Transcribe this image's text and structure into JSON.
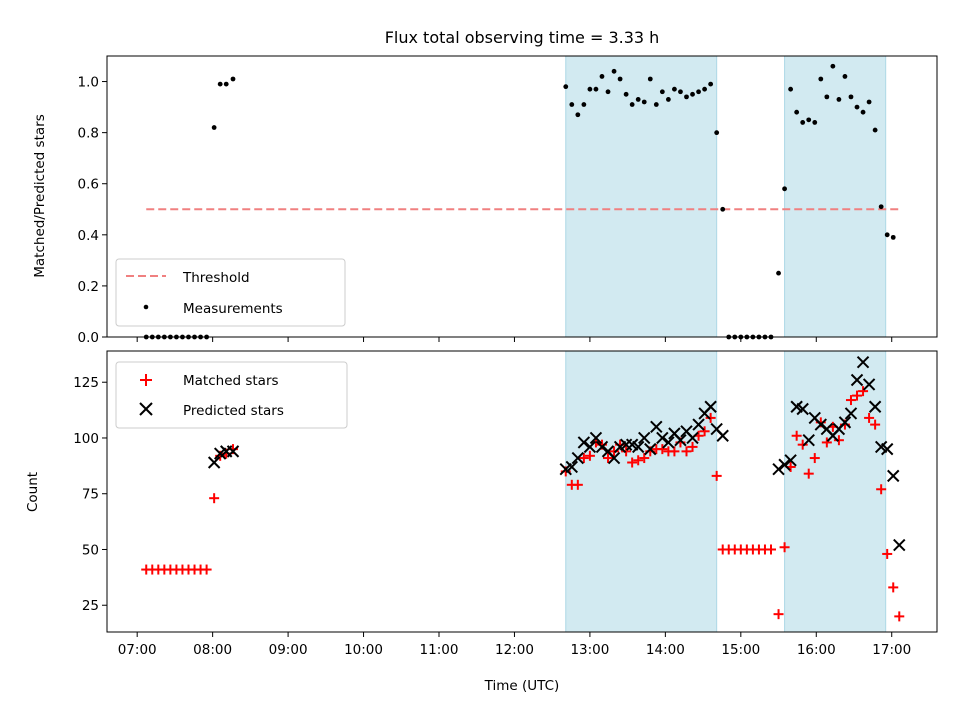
{
  "title": "Flux total observing time = 3.33 h",
  "xlabel": "Time (UTC)",
  "colors": {
    "band": "#add8e6",
    "threshold": "#f08080",
    "measurement": "#000000",
    "matched": "#ff0000",
    "predicted": "#000000"
  },
  "chart_data": [
    {
      "type": "scatter",
      "panel": "top",
      "ylabel": "Matched/Predicted stars",
      "xlim_hours": [
        6.6,
        17.6
      ],
      "ylim": [
        0,
        1.1
      ],
      "yticks": [
        0.0,
        0.2,
        0.4,
        0.6,
        0.8,
        1.0
      ],
      "ytick_labels": [
        "0.0",
        "0.2",
        "0.4",
        "0.6",
        "0.8",
        "1.0"
      ],
      "grid": false,
      "legend_position": "lower-left",
      "shaded_intervals_hours": [
        [
          12.68,
          14.68
        ],
        [
          15.58,
          16.92
        ]
      ],
      "threshold": {
        "label": "Threshold",
        "value": 0.5,
        "x_start": 7.12,
        "x_end": 17.12
      },
      "series": [
        {
          "name": "Measurements",
          "marker": "dot",
          "points": [
            [
              7.12,
              0
            ],
            [
              7.2,
              0
            ],
            [
              7.28,
              0
            ],
            [
              7.36,
              0
            ],
            [
              7.44,
              0
            ],
            [
              7.52,
              0
            ],
            [
              7.6,
              0
            ],
            [
              7.68,
              0
            ],
            [
              7.76,
              0
            ],
            [
              7.84,
              0
            ],
            [
              7.92,
              0
            ],
            [
              8.02,
              0.82
            ],
            [
              8.1,
              0.99
            ],
            [
              8.18,
              0.99
            ],
            [
              8.27,
              1.01
            ],
            [
              12.68,
              0.98
            ],
            [
              12.76,
              0.91
            ],
            [
              12.84,
              0.87
            ],
            [
              12.92,
              0.91
            ],
            [
              13.0,
              0.97
            ],
            [
              13.08,
              0.97
            ],
            [
              13.16,
              1.02
            ],
            [
              13.24,
              0.96
            ],
            [
              13.32,
              1.04
            ],
            [
              13.4,
              1.01
            ],
            [
              13.48,
              0.95
            ],
            [
              13.56,
              0.91
            ],
            [
              13.64,
              0.93
            ],
            [
              13.72,
              0.92
            ],
            [
              13.8,
              1.01
            ],
            [
              13.88,
              0.91
            ],
            [
              13.96,
              0.96
            ],
            [
              14.04,
              0.93
            ],
            [
              14.12,
              0.97
            ],
            [
              14.2,
              0.96
            ],
            [
              14.28,
              0.94
            ],
            [
              14.36,
              0.95
            ],
            [
              14.44,
              0.96
            ],
            [
              14.52,
              0.97
            ],
            [
              14.6,
              0.99
            ],
            [
              14.68,
              0.8
            ],
            [
              14.76,
              0.5
            ],
            [
              14.84,
              0
            ],
            [
              14.92,
              0
            ],
            [
              15.0,
              0
            ],
            [
              15.08,
              0
            ],
            [
              15.16,
              0
            ],
            [
              15.24,
              0
            ],
            [
              15.32,
              0
            ],
            [
              15.4,
              0
            ],
            [
              15.5,
              0.25
            ],
            [
              15.58,
              0.58
            ],
            [
              15.66,
              0.97
            ],
            [
              15.74,
              0.88
            ],
            [
              15.82,
              0.84
            ],
            [
              15.9,
              0.85
            ],
            [
              15.98,
              0.84
            ],
            [
              16.06,
              1.01
            ],
            [
              16.14,
              0.94
            ],
            [
              16.22,
              1.06
            ],
            [
              16.3,
              0.93
            ],
            [
              16.38,
              1.02
            ],
            [
              16.46,
              0.94
            ],
            [
              16.54,
              0.9
            ],
            [
              16.62,
              0.88
            ],
            [
              16.7,
              0.92
            ],
            [
              16.78,
              0.81
            ],
            [
              16.86,
              0.51
            ],
            [
              16.94,
              0.4
            ],
            [
              17.02,
              0.39
            ]
          ]
        }
      ]
    },
    {
      "type": "scatter",
      "panel": "bottom",
      "ylabel": "Count",
      "xlim_hours": [
        6.6,
        17.6
      ],
      "ylim": [
        13,
        139
      ],
      "yticks": [
        25,
        50,
        75,
        100,
        125
      ],
      "ytick_labels": [
        "25",
        "50",
        "75",
        "100",
        "125"
      ],
      "xticks_hours": [
        7,
        8,
        9,
        10,
        11,
        12,
        13,
        14,
        15,
        16,
        17
      ],
      "xtick_labels": [
        "07:00",
        "08:00",
        "09:00",
        "10:00",
        "11:00",
        "12:00",
        "13:00",
        "14:00",
        "15:00",
        "16:00",
        "17:00"
      ],
      "grid": false,
      "legend_position": "upper-left",
      "shaded_intervals_hours": [
        [
          12.68,
          14.68
        ],
        [
          15.58,
          16.92
        ]
      ],
      "series": [
        {
          "name": "Matched stars",
          "marker": "plus",
          "points": [
            [
              7.12,
              41
            ],
            [
              7.2,
              41
            ],
            [
              7.28,
              41
            ],
            [
              7.36,
              41
            ],
            [
              7.44,
              41
            ],
            [
              7.52,
              41
            ],
            [
              7.6,
              41
            ],
            [
              7.68,
              41
            ],
            [
              7.76,
              41
            ],
            [
              7.84,
              41
            ],
            [
              7.92,
              41
            ],
            [
              8.02,
              73
            ],
            [
              8.1,
              92
            ],
            [
              8.18,
              93
            ],
            [
              8.27,
              95
            ],
            [
              12.68,
              85
            ],
            [
              12.76,
              79
            ],
            [
              12.84,
              79
            ],
            [
              12.92,
              91
            ],
            [
              13.0,
              92
            ],
            [
              13.08,
              98
            ],
            [
              13.16,
              97
            ],
            [
              13.24,
              91
            ],
            [
              13.32,
              94
            ],
            [
              13.4,
              97
            ],
            [
              13.48,
              94
            ],
            [
              13.56,
              89
            ],
            [
              13.64,
              90
            ],
            [
              13.72,
              91
            ],
            [
              13.8,
              94
            ],
            [
              13.88,
              95
            ],
            [
              13.96,
              95
            ],
            [
              14.04,
              94
            ],
            [
              14.12,
              94
            ],
            [
              14.2,
              98
            ],
            [
              14.28,
              94
            ],
            [
              14.36,
              96
            ],
            [
              14.44,
              101
            ],
            [
              14.52,
              103
            ],
            [
              14.6,
              109
            ],
            [
              14.68,
              83
            ],
            [
              14.76,
              50
            ],
            [
              14.84,
              50
            ],
            [
              14.92,
              50
            ],
            [
              15.0,
              50
            ],
            [
              15.08,
              50
            ],
            [
              15.16,
              50
            ],
            [
              15.24,
              50
            ],
            [
              15.32,
              50
            ],
            [
              15.4,
              50
            ],
            [
              15.5,
              21
            ],
            [
              15.58,
              51
            ],
            [
              15.66,
              87
            ],
            [
              15.74,
              101
            ],
            [
              15.82,
              97
            ],
            [
              15.9,
              84
            ],
            [
              15.98,
              91
            ],
            [
              16.06,
              107
            ],
            [
              16.14,
              98
            ],
            [
              16.22,
              105
            ],
            [
              16.3,
              99
            ],
            [
              16.38,
              106
            ],
            [
              16.46,
              117
            ],
            [
              16.54,
              119
            ],
            [
              16.62,
              121
            ],
            [
              16.7,
              109
            ],
            [
              16.78,
              106
            ],
            [
              16.86,
              77
            ],
            [
              16.94,
              48
            ],
            [
              17.02,
              33
            ],
            [
              17.1,
              20
            ]
          ]
        },
        {
          "name": "Predicted stars",
          "marker": "x",
          "points": [
            [
              8.02,
              89
            ],
            [
              8.1,
              93
            ],
            [
              8.18,
              94
            ],
            [
              8.27,
              94
            ],
            [
              12.68,
              86
            ],
            [
              12.76,
              87
            ],
            [
              12.84,
              91
            ],
            [
              12.92,
              98
            ],
            [
              13.0,
              96
            ],
            [
              13.08,
              100
            ],
            [
              13.16,
              96
            ],
            [
              13.24,
              94
            ],
            [
              13.32,
              91
            ],
            [
              13.4,
              96
            ],
            [
              13.48,
              97
            ],
            [
              13.56,
              97
            ],
            [
              13.64,
              96
            ],
            [
              13.72,
              100
            ],
            [
              13.8,
              95
            ],
            [
              13.88,
              105
            ],
            [
              13.96,
              100
            ],
            [
              14.04,
              98
            ],
            [
              14.12,
              102
            ],
            [
              14.2,
              99
            ],
            [
              14.28,
              103
            ],
            [
              14.36,
              100
            ],
            [
              14.44,
              106
            ],
            [
              14.52,
              111
            ],
            [
              14.6,
              114
            ],
            [
              14.68,
              104
            ],
            [
              14.76,
              101
            ],
            [
              15.5,
              86
            ],
            [
              15.58,
              88
            ],
            [
              15.66,
              90
            ],
            [
              15.74,
              114
            ],
            [
              15.82,
              113
            ],
            [
              15.9,
              99
            ],
            [
              15.98,
              109
            ],
            [
              16.06,
              106
            ],
            [
              16.14,
              104
            ],
            [
              16.22,
              101
            ],
            [
              16.3,
              104
            ],
            [
              16.38,
              107
            ],
            [
              16.46,
              111
            ],
            [
              16.54,
              126
            ],
            [
              16.62,
              134
            ],
            [
              16.7,
              124
            ],
            [
              16.78,
              114
            ],
            [
              16.86,
              96
            ],
            [
              16.94,
              95
            ],
            [
              17.02,
              83
            ],
            [
              17.1,
              52
            ]
          ]
        }
      ]
    }
  ]
}
